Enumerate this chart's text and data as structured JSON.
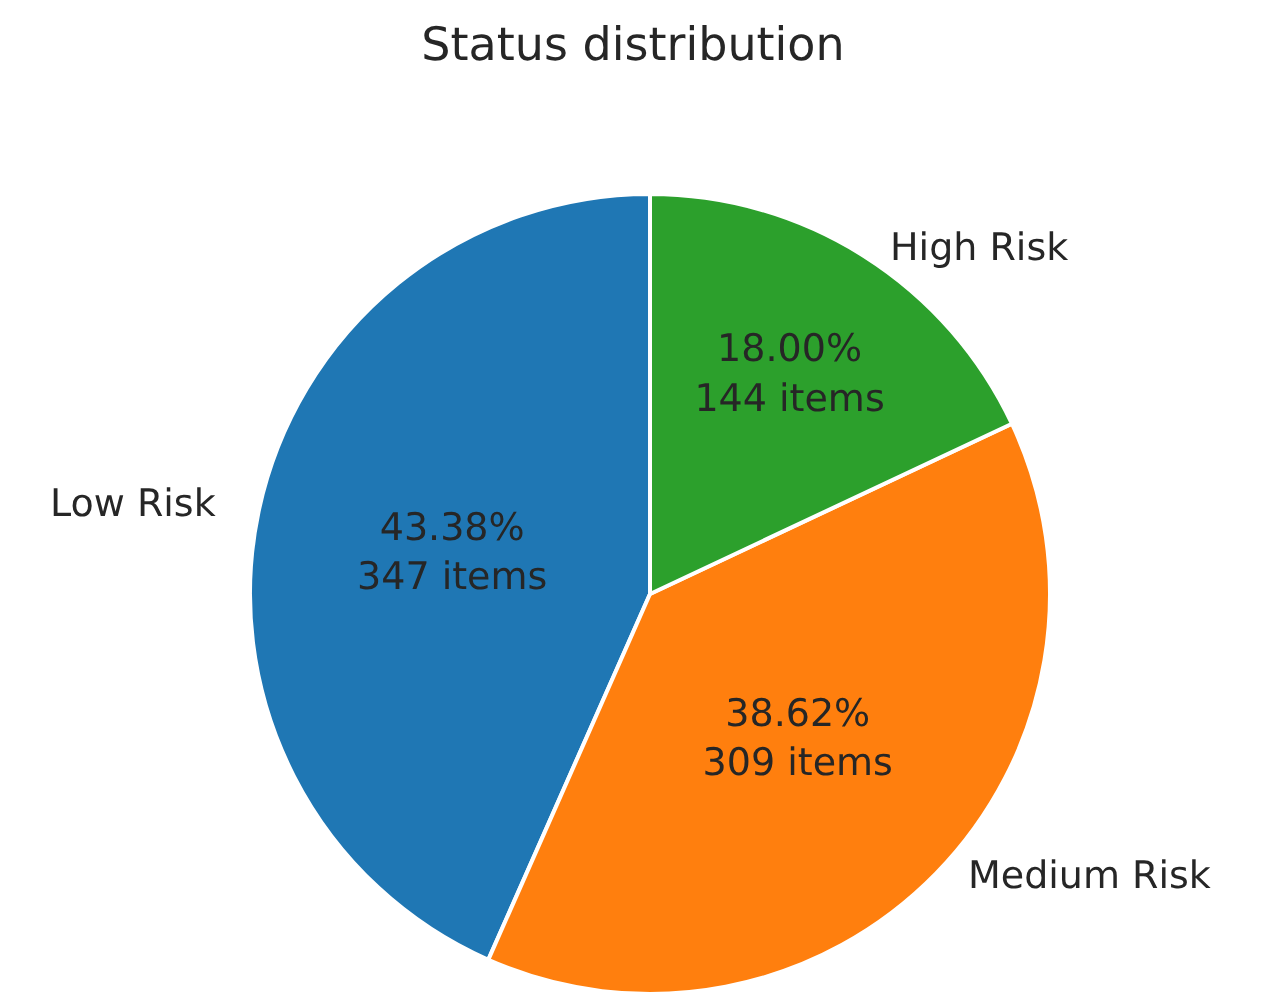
{
  "chart_data": {
    "type": "pie",
    "title": "Status distribution",
    "categories": [
      "Low Risk",
      "Medium Risk",
      "High Risk"
    ],
    "values": [
      347,
      309,
      144
    ],
    "colors": [
      "#1f77b4",
      "#ff7f0e",
      "#2ca02c"
    ],
    "value_labels": [
      "43.38%\n347 items",
      "38.62%\n309 items",
      "18.00%\n144 items"
    ],
    "legend": false
  }
}
